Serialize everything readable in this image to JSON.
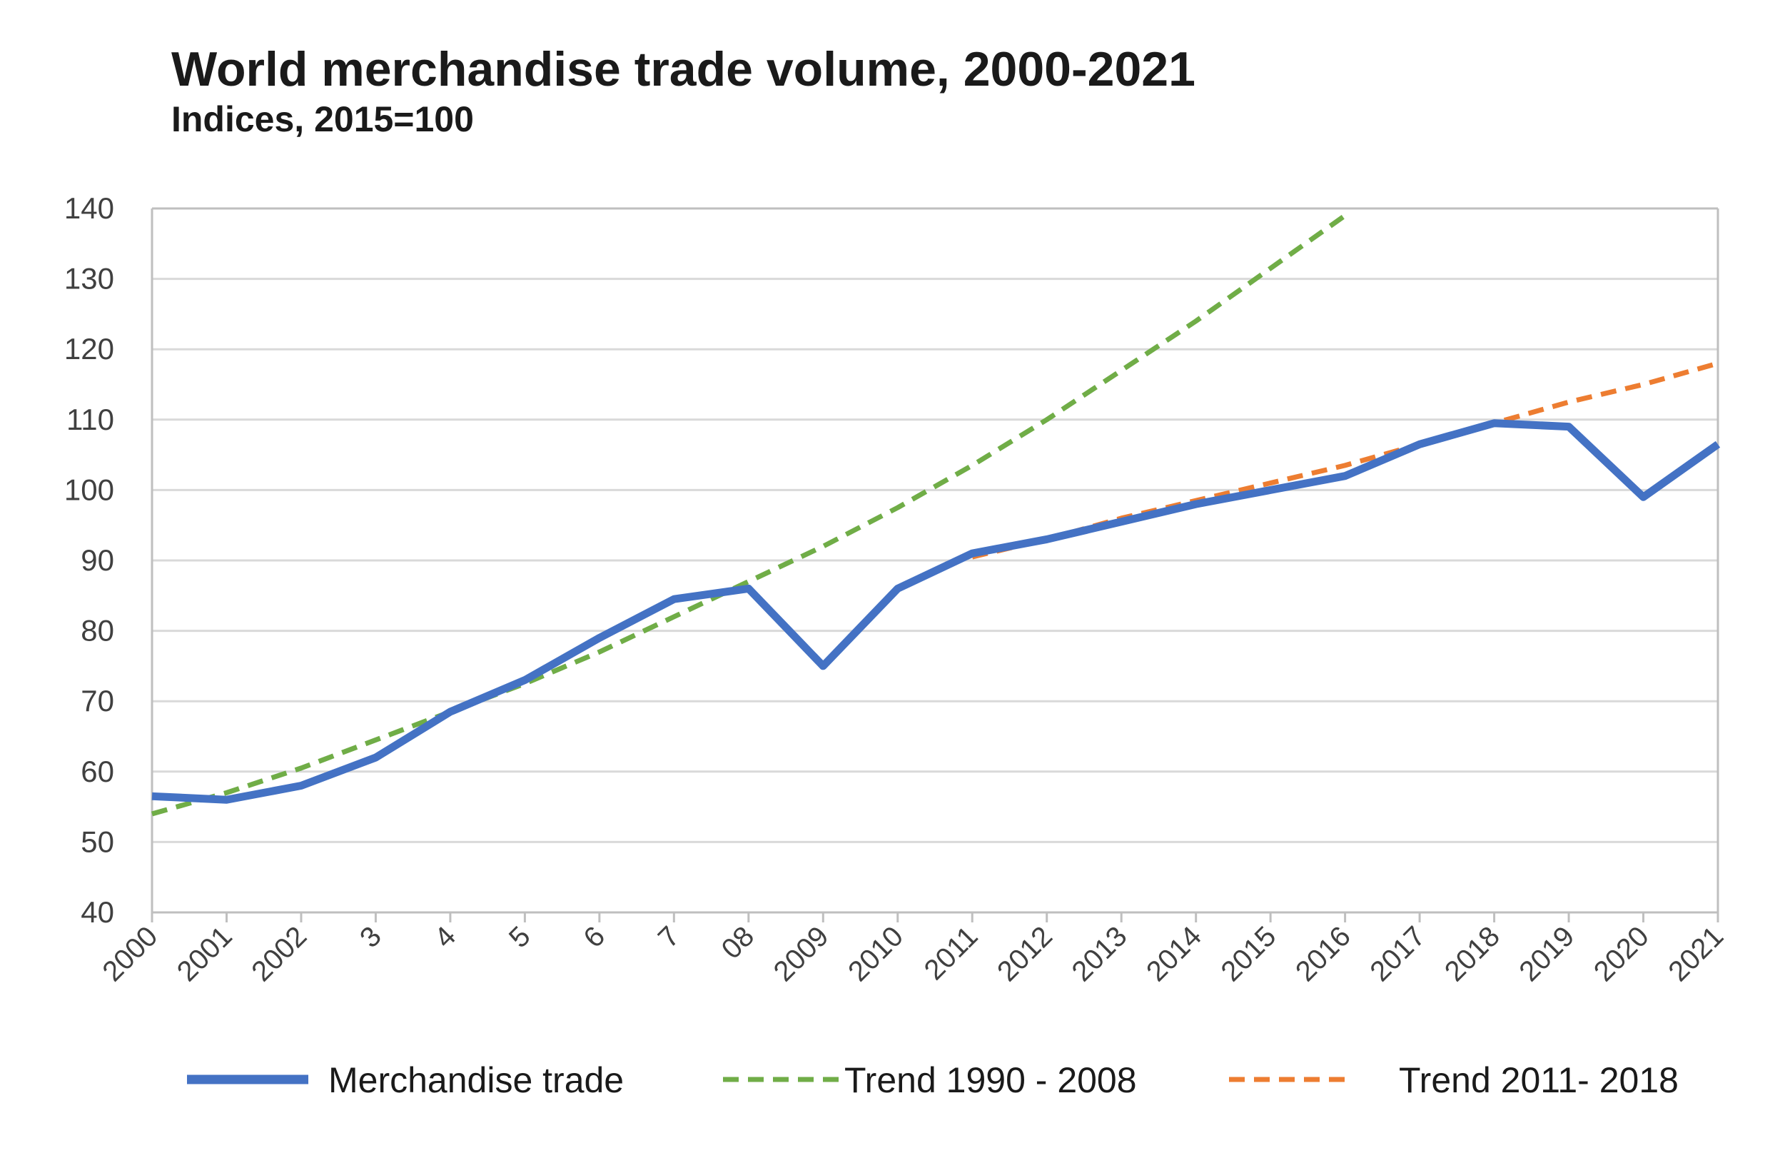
{
  "chart_data": {
    "type": "line",
    "title": "World merchandise trade volume, 2000-2021",
    "subtitle": "Indices, 2015=100",
    "xlabel": "",
    "ylabel": "",
    "x": [
      "2000",
      "2001",
      "2002",
      "2003",
      "2004",
      "2005",
      "2006",
      "2007",
      "2008",
      "2009",
      "2010",
      "2011",
      "2012",
      "2013",
      "2014",
      "2015",
      "2016",
      "2017",
      "2018",
      "2019",
      "2020",
      "2021"
    ],
    "x_tick_labels": [
      "2000",
      "2001",
      "2002",
      "3",
      "4",
      "5",
      "6",
      "7",
      "08",
      "2009",
      "2010",
      "2011",
      "2012",
      "2013",
      "2014",
      "2015",
      "2016",
      "2017",
      "2018",
      "2019",
      "2020",
      "2021"
    ],
    "ylim": [
      40,
      140
    ],
    "yticks": [
      40,
      50,
      60,
      70,
      80,
      90,
      100,
      110,
      120,
      130,
      140
    ],
    "grid": true,
    "legend_position": "bottom",
    "colors": {
      "merchandise": "#4472C4",
      "trend_1990_2008": "#70AD47",
      "trend_2011_2018": "#ED7D31",
      "grid": "#d9d9d9",
      "axis": "#bfbfbf"
    },
    "series": [
      {
        "name": "Merchandise trade",
        "style": "solid",
        "x": [
          "2000",
          "2001",
          "2002",
          "2003",
          "2004",
          "2005",
          "2006",
          "2007",
          "2008",
          "2009",
          "2010",
          "2011",
          "2012",
          "2013",
          "2014",
          "2015",
          "2016",
          "2017",
          "2018",
          "2019",
          "2020",
          "2021"
        ],
        "values": [
          56.5,
          56,
          58,
          62,
          68.5,
          73,
          79,
          84.5,
          86,
          75,
          86,
          91,
          93,
          95.5,
          98,
          100,
          102,
          106.5,
          109.5,
          109,
          99,
          106.5
        ]
      },
      {
        "name": "Trend 1990 - 2008",
        "style": "dashed",
        "x": [
          "2000",
          "2001",
          "2002",
          "2003",
          "2004",
          "2005",
          "2006",
          "2007",
          "2008",
          "2009",
          "2010",
          "2011",
          "2012",
          "2013",
          "2014",
          "2015",
          "2016"
        ],
        "values": [
          54,
          57,
          60.5,
          64.5,
          68.5,
          72.5,
          77,
          82,
          87,
          92,
          97.5,
          103.5,
          110,
          117,
          124,
          131.5,
          139
        ]
      },
      {
        "name": "Trend 2011- 2018",
        "style": "dashed",
        "x": [
          "2011",
          "2012",
          "2013",
          "2014",
          "2015",
          "2016",
          "2017",
          "2018",
          "2019",
          "2020",
          "2021"
        ],
        "values": [
          90.5,
          93,
          96,
          98.5,
          101,
          103.5,
          106.5,
          109.5,
          112.5,
          115,
          118
        ]
      }
    ]
  }
}
